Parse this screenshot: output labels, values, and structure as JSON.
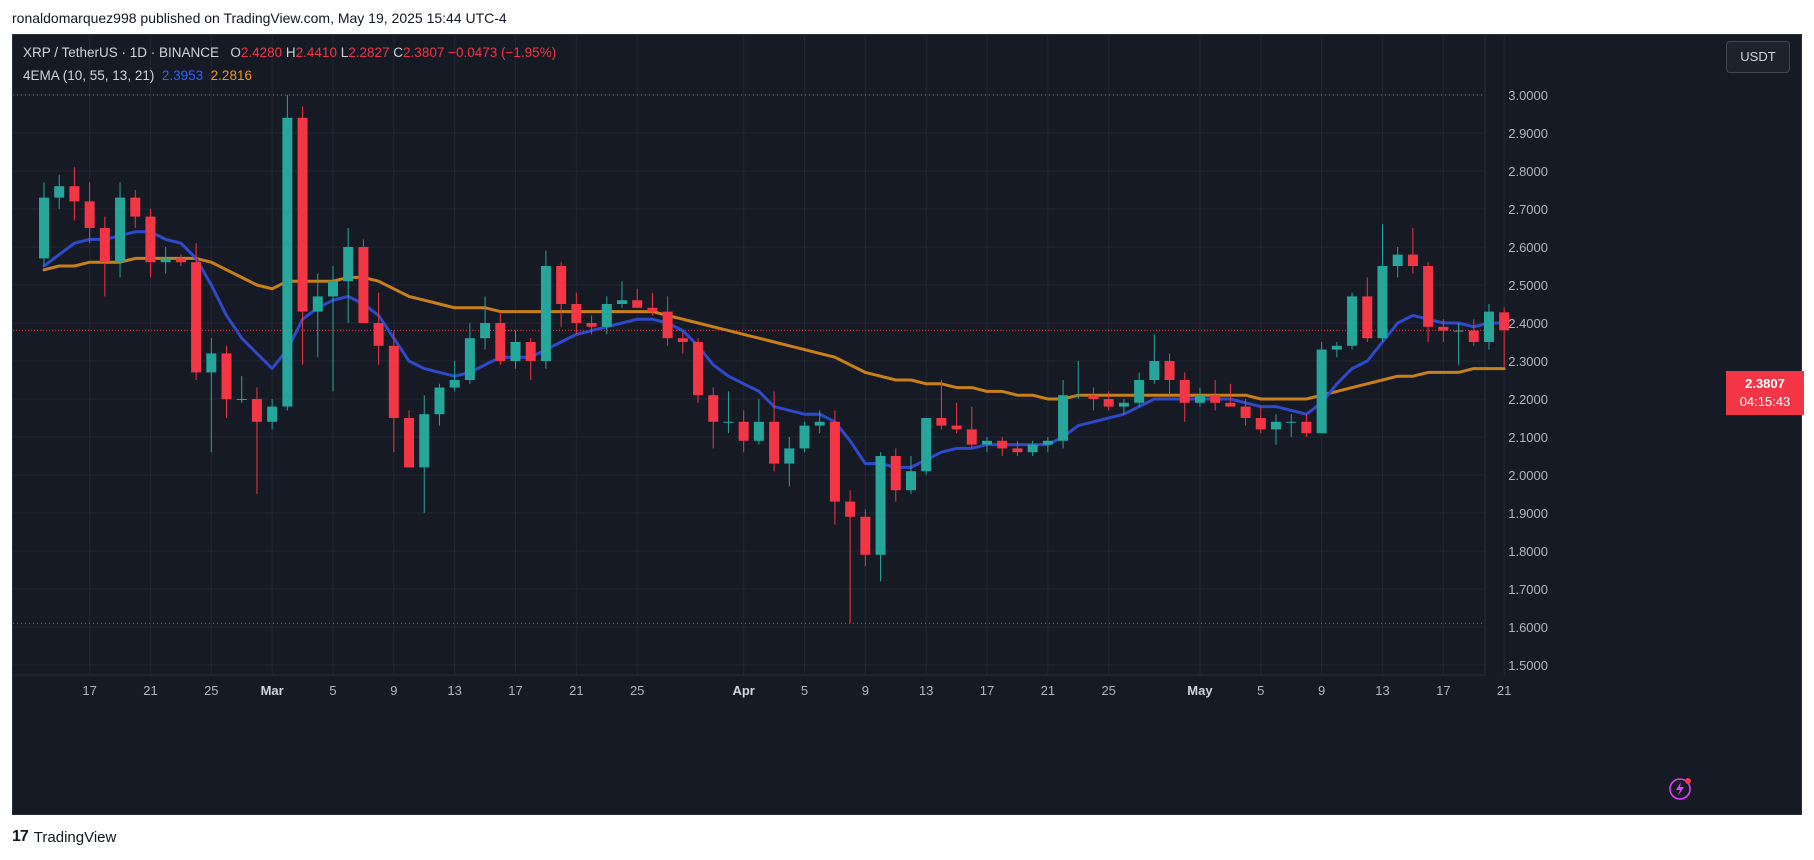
{
  "publish_line": "ronaldomarquez998 published on TradingView.com, May 19, 2025 15:44 UTC-4",
  "legend": {
    "symbol_line": "XRP / TetherUS · 1D · BINANCE",
    "o_label": "O",
    "o_value": "2.4280",
    "h_label": "H",
    "h_value": "2.4410",
    "l_label": "L",
    "l_value": "2.2827",
    "c_label": "C",
    "c_value": "2.3807",
    "change": "−0.0473 (−1.95%)",
    "indicator": "4EMA (10, 55, 13, 21)",
    "ema_fast_value": "2.3953",
    "ema_slow_value": "2.2816"
  },
  "currency_button": "USDT",
  "price_tag": {
    "price": "2.3807",
    "countdown": "04:15:43"
  },
  "footer": {
    "brand": "TradingView",
    "mark": "17"
  },
  "colors": {
    "up": "#26a69a",
    "down": "#f23645",
    "ema_fast": "#2962ff",
    "ema_slow": "#f7931a",
    "background": "#161a25",
    "grid": "#232733",
    "text": "#b2b5be"
  },
  "chart_data": {
    "type": "candlestick",
    "symbol": "XRP / TetherUS",
    "interval": "1D",
    "exchange": "BINANCE",
    "ylim": [
      1.5,
      3.0
    ],
    "y_ticks": [
      "3.0000",
      "2.9000",
      "2.8000",
      "2.7000",
      "2.6000",
      "2.5000",
      "2.4000",
      "2.3000",
      "2.2000",
      "2.1000",
      "2.0000",
      "1.9000",
      "1.8000",
      "1.7000",
      "1.6000",
      "1.5000"
    ],
    "x_ticks": [
      {
        "label": "17",
        "bold": false,
        "i": 3
      },
      {
        "label": "21",
        "bold": false,
        "i": 7
      },
      {
        "label": "25",
        "bold": false,
        "i": 11
      },
      {
        "label": "Mar",
        "bold": true,
        "i": 15
      },
      {
        "label": "5",
        "bold": false,
        "i": 19
      },
      {
        "label": "9",
        "bold": false,
        "i": 23
      },
      {
        "label": "13",
        "bold": false,
        "i": 27
      },
      {
        "label": "17",
        "bold": false,
        "i": 31
      },
      {
        "label": "21",
        "bold": false,
        "i": 35
      },
      {
        "label": "25",
        "bold": false,
        "i": 39
      },
      {
        "label": "Apr",
        "bold": true,
        "i": 46
      },
      {
        "label": "5",
        "bold": false,
        "i": 50
      },
      {
        "label": "9",
        "bold": false,
        "i": 54
      },
      {
        "label": "13",
        "bold": false,
        "i": 58
      },
      {
        "label": "17",
        "bold": false,
        "i": 62
      },
      {
        "label": "21",
        "bold": false,
        "i": 66
      },
      {
        "label": "25",
        "bold": false,
        "i": 70
      },
      {
        "label": "May",
        "bold": true,
        "i": 76
      },
      {
        "label": "5",
        "bold": false,
        "i": 80
      },
      {
        "label": "9",
        "bold": false,
        "i": 84
      },
      {
        "label": "13",
        "bold": false,
        "i": 88
      },
      {
        "label": "17",
        "bold": false,
        "i": 92
      },
      {
        "label": "21",
        "bold": false,
        "i": 96
      }
    ],
    "candles": [
      {
        "o": 2.57,
        "h": 2.77,
        "l": 2.55,
        "c": 2.73
      },
      {
        "o": 2.73,
        "h": 2.79,
        "l": 2.7,
        "c": 2.76
      },
      {
        "o": 2.76,
        "h": 2.81,
        "l": 2.67,
        "c": 2.72
      },
      {
        "o": 2.72,
        "h": 2.77,
        "l": 2.61,
        "c": 2.65
      },
      {
        "o": 2.65,
        "h": 2.68,
        "l": 2.47,
        "c": 2.56
      },
      {
        "o": 2.56,
        "h": 2.77,
        "l": 2.52,
        "c": 2.73
      },
      {
        "o": 2.73,
        "h": 2.75,
        "l": 2.65,
        "c": 2.68
      },
      {
        "o": 2.68,
        "h": 2.7,
        "l": 2.52,
        "c": 2.56
      },
      {
        "o": 2.56,
        "h": 2.6,
        "l": 2.53,
        "c": 2.57
      },
      {
        "o": 2.57,
        "h": 2.58,
        "l": 2.55,
        "c": 2.56
      },
      {
        "o": 2.56,
        "h": 2.61,
        "l": 2.25,
        "c": 2.27
      },
      {
        "o": 2.27,
        "h": 2.36,
        "l": 2.06,
        "c": 2.32
      },
      {
        "o": 2.32,
        "h": 2.34,
        "l": 2.15,
        "c": 2.2
      },
      {
        "o": 2.2,
        "h": 2.26,
        "l": 2.19,
        "c": 2.2
      },
      {
        "o": 2.2,
        "h": 2.23,
        "l": 1.95,
        "c": 2.14
      },
      {
        "o": 2.14,
        "h": 2.2,
        "l": 2.12,
        "c": 2.18
      },
      {
        "o": 2.18,
        "h": 3.0,
        "l": 2.17,
        "c": 2.94
      },
      {
        "o": 2.94,
        "h": 2.97,
        "l": 2.29,
        "c": 2.43
      },
      {
        "o": 2.43,
        "h": 2.53,
        "l": 2.31,
        "c": 2.47
      },
      {
        "o": 2.47,
        "h": 2.55,
        "l": 2.22,
        "c": 2.51
      },
      {
        "o": 2.51,
        "h": 2.65,
        "l": 2.4,
        "c": 2.6
      },
      {
        "o": 2.6,
        "h": 2.62,
        "l": 2.4,
        "c": 2.4
      },
      {
        "o": 2.4,
        "h": 2.48,
        "l": 2.29,
        "c": 2.34
      },
      {
        "o": 2.34,
        "h": 2.38,
        "l": 2.06,
        "c": 2.15
      },
      {
        "o": 2.15,
        "h": 2.17,
        "l": 2.02,
        "c": 2.02
      },
      {
        "o": 2.02,
        "h": 2.21,
        "l": 1.9,
        "c": 2.16
      },
      {
        "o": 2.16,
        "h": 2.24,
        "l": 2.13,
        "c": 2.23
      },
      {
        "o": 2.23,
        "h": 2.3,
        "l": 2.22,
        "c": 2.25
      },
      {
        "o": 2.25,
        "h": 2.4,
        "l": 2.24,
        "c": 2.36
      },
      {
        "o": 2.36,
        "h": 2.47,
        "l": 2.33,
        "c": 2.4
      },
      {
        "o": 2.4,
        "h": 2.43,
        "l": 2.29,
        "c": 2.3
      },
      {
        "o": 2.3,
        "h": 2.38,
        "l": 2.28,
        "c": 2.35
      },
      {
        "o": 2.35,
        "h": 2.36,
        "l": 2.25,
        "c": 2.3
      },
      {
        "o": 2.3,
        "h": 2.59,
        "l": 2.28,
        "c": 2.55
      },
      {
        "o": 2.55,
        "h": 2.56,
        "l": 2.39,
        "c": 2.45
      },
      {
        "o": 2.45,
        "h": 2.48,
        "l": 2.37,
        "c": 2.4
      },
      {
        "o": 2.4,
        "h": 2.42,
        "l": 2.37,
        "c": 2.39
      },
      {
        "o": 2.39,
        "h": 2.47,
        "l": 2.37,
        "c": 2.45
      },
      {
        "o": 2.45,
        "h": 2.51,
        "l": 2.44,
        "c": 2.46
      },
      {
        "o": 2.46,
        "h": 2.49,
        "l": 2.44,
        "c": 2.44
      },
      {
        "o": 2.44,
        "h": 2.48,
        "l": 2.42,
        "c": 2.43
      },
      {
        "o": 2.43,
        "h": 2.47,
        "l": 2.34,
        "c": 2.36
      },
      {
        "o": 2.36,
        "h": 2.38,
        "l": 2.32,
        "c": 2.35
      },
      {
        "o": 2.35,
        "h": 2.36,
        "l": 2.19,
        "c": 2.21
      },
      {
        "o": 2.21,
        "h": 2.23,
        "l": 2.07,
        "c": 2.14
      },
      {
        "o": 2.14,
        "h": 2.22,
        "l": 2.11,
        "c": 2.14
      },
      {
        "o": 2.14,
        "h": 2.17,
        "l": 2.06,
        "c": 2.09
      },
      {
        "o": 2.09,
        "h": 2.2,
        "l": 2.08,
        "c": 2.14
      },
      {
        "o": 2.14,
        "h": 2.22,
        "l": 2.01,
        "c": 2.03
      },
      {
        "o": 2.03,
        "h": 2.1,
        "l": 1.97,
        "c": 2.07
      },
      {
        "o": 2.07,
        "h": 2.14,
        "l": 2.06,
        "c": 2.13
      },
      {
        "o": 2.13,
        "h": 2.17,
        "l": 2.11,
        "c": 2.14
      },
      {
        "o": 2.14,
        "h": 2.17,
        "l": 1.87,
        "c": 1.93
      },
      {
        "o": 1.93,
        "h": 1.96,
        "l": 1.61,
        "c": 1.89
      },
      {
        "o": 1.89,
        "h": 1.91,
        "l": 1.76,
        "c": 1.79
      },
      {
        "o": 1.79,
        "h": 2.06,
        "l": 1.72,
        "c": 2.05
      },
      {
        "o": 2.05,
        "h": 2.07,
        "l": 1.93,
        "c": 1.96
      },
      {
        "o": 1.96,
        "h": 2.05,
        "l": 1.95,
        "c": 2.01
      },
      {
        "o": 2.01,
        "h": 2.15,
        "l": 2.0,
        "c": 2.15
      },
      {
        "o": 2.15,
        "h": 2.25,
        "l": 2.12,
        "c": 2.13
      },
      {
        "o": 2.13,
        "h": 2.19,
        "l": 2.11,
        "c": 2.12
      },
      {
        "o": 2.12,
        "h": 2.18,
        "l": 2.07,
        "c": 2.08
      },
      {
        "o": 2.08,
        "h": 2.1,
        "l": 2.06,
        "c": 2.09
      },
      {
        "o": 2.09,
        "h": 2.1,
        "l": 2.05,
        "c": 2.07
      },
      {
        "o": 2.07,
        "h": 2.09,
        "l": 2.05,
        "c": 2.06
      },
      {
        "o": 2.06,
        "h": 2.09,
        "l": 2.05,
        "c": 2.08
      },
      {
        "o": 2.08,
        "h": 2.1,
        "l": 2.06,
        "c": 2.09
      },
      {
        "o": 2.09,
        "h": 2.25,
        "l": 2.07,
        "c": 2.21
      },
      {
        "o": 2.21,
        "h": 2.3,
        "l": 2.2,
        "c": 2.21
      },
      {
        "o": 2.21,
        "h": 2.23,
        "l": 2.17,
        "c": 2.2
      },
      {
        "o": 2.2,
        "h": 2.22,
        "l": 2.17,
        "c": 2.18
      },
      {
        "o": 2.18,
        "h": 2.2,
        "l": 2.16,
        "c": 2.19
      },
      {
        "o": 2.19,
        "h": 2.27,
        "l": 2.18,
        "c": 2.25
      },
      {
        "o": 2.25,
        "h": 2.37,
        "l": 2.24,
        "c": 2.3
      },
      {
        "o": 2.3,
        "h": 2.32,
        "l": 2.21,
        "c": 2.25
      },
      {
        "o": 2.25,
        "h": 2.27,
        "l": 2.14,
        "c": 2.19
      },
      {
        "o": 2.19,
        "h": 2.23,
        "l": 2.18,
        "c": 2.21
      },
      {
        "o": 2.21,
        "h": 2.25,
        "l": 2.17,
        "c": 2.19
      },
      {
        "o": 2.19,
        "h": 2.24,
        "l": 2.18,
        "c": 2.18
      },
      {
        "o": 2.18,
        "h": 2.2,
        "l": 2.13,
        "c": 2.15
      },
      {
        "o": 2.15,
        "h": 2.18,
        "l": 2.11,
        "c": 2.12
      },
      {
        "o": 2.12,
        "h": 2.16,
        "l": 2.08,
        "c": 2.14
      },
      {
        "o": 2.14,
        "h": 2.16,
        "l": 2.1,
        "c": 2.14
      },
      {
        "o": 2.14,
        "h": 2.16,
        "l": 2.1,
        "c": 2.11
      },
      {
        "o": 2.11,
        "h": 2.35,
        "l": 2.11,
        "c": 2.33
      },
      {
        "o": 2.33,
        "h": 2.35,
        "l": 2.31,
        "c": 2.34
      },
      {
        "o": 2.34,
        "h": 2.48,
        "l": 2.33,
        "c": 2.47
      },
      {
        "o": 2.47,
        "h": 2.52,
        "l": 2.35,
        "c": 2.36
      },
      {
        "o": 2.36,
        "h": 2.66,
        "l": 2.35,
        "c": 2.55
      },
      {
        "o": 2.55,
        "h": 2.6,
        "l": 2.52,
        "c": 2.58
      },
      {
        "o": 2.58,
        "h": 2.65,
        "l": 2.53,
        "c": 2.55
      },
      {
        "o": 2.55,
        "h": 2.56,
        "l": 2.35,
        "c": 2.39
      },
      {
        "o": 2.39,
        "h": 2.41,
        "l": 2.35,
        "c": 2.38
      },
      {
        "o": 2.38,
        "h": 2.4,
        "l": 2.29,
        "c": 2.38
      },
      {
        "o": 2.38,
        "h": 2.41,
        "l": 2.34,
        "c": 2.35
      },
      {
        "o": 2.35,
        "h": 2.45,
        "l": 2.33,
        "c": 2.43
      },
      {
        "o": 2.428,
        "h": 2.441,
        "l": 2.2827,
        "c": 2.3807
      }
    ],
    "ema_fast": [
      2.55,
      2.58,
      2.61,
      2.62,
      2.62,
      2.63,
      2.64,
      2.64,
      2.62,
      2.61,
      2.57,
      2.5,
      2.42,
      2.36,
      2.32,
      2.28,
      2.33,
      2.41,
      2.44,
      2.46,
      2.47,
      2.45,
      2.42,
      2.36,
      2.3,
      2.28,
      2.27,
      2.26,
      2.27,
      2.29,
      2.31,
      2.31,
      2.31,
      2.33,
      2.35,
      2.37,
      2.38,
      2.39,
      2.4,
      2.41,
      2.41,
      2.4,
      2.38,
      2.34,
      2.29,
      2.26,
      2.24,
      2.22,
      2.18,
      2.17,
      2.16,
      2.16,
      2.14,
      2.09,
      2.03,
      2.03,
      2.02,
      2.02,
      2.04,
      2.06,
      2.07,
      2.07,
      2.08,
      2.08,
      2.08,
      2.08,
      2.08,
      2.1,
      2.13,
      2.14,
      2.15,
      2.16,
      2.18,
      2.2,
      2.2,
      2.2,
      2.2,
      2.2,
      2.2,
      2.19,
      2.18,
      2.18,
      2.17,
      2.16,
      2.19,
      2.24,
      2.28,
      2.3,
      2.35,
      2.4,
      2.42,
      2.41,
      2.4,
      2.4,
      2.39,
      2.4,
      2.4
    ],
    "ema_slow": [
      2.54,
      2.55,
      2.55,
      2.56,
      2.56,
      2.56,
      2.57,
      2.57,
      2.57,
      2.57,
      2.57,
      2.56,
      2.54,
      2.52,
      2.5,
      2.49,
      2.51,
      2.51,
      2.51,
      2.51,
      2.52,
      2.52,
      2.51,
      2.49,
      2.47,
      2.46,
      2.45,
      2.44,
      2.44,
      2.44,
      2.43,
      2.43,
      2.43,
      2.43,
      2.43,
      2.43,
      2.43,
      2.43,
      2.43,
      2.43,
      2.43,
      2.42,
      2.41,
      2.4,
      2.39,
      2.38,
      2.37,
      2.36,
      2.35,
      2.34,
      2.33,
      2.32,
      2.31,
      2.29,
      2.27,
      2.26,
      2.25,
      2.25,
      2.24,
      2.24,
      2.23,
      2.23,
      2.22,
      2.22,
      2.21,
      2.21,
      2.2,
      2.2,
      2.21,
      2.21,
      2.21,
      2.21,
      2.21,
      2.21,
      2.21,
      2.21,
      2.21,
      2.21,
      2.21,
      2.21,
      2.2,
      2.2,
      2.2,
      2.2,
      2.21,
      2.22,
      2.23,
      2.24,
      2.25,
      2.26,
      2.26,
      2.27,
      2.27,
      2.27,
      2.28,
      2.28,
      2.28
    ]
  }
}
